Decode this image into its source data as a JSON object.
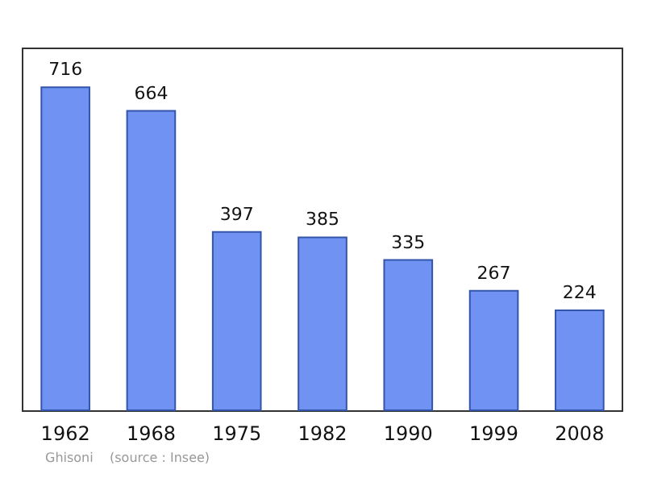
{
  "chart_data": {
    "type": "bar",
    "categories": [
      "1962",
      "1968",
      "1975",
      "1982",
      "1990",
      "1999",
      "2008"
    ],
    "values": [
      716,
      664,
      397,
      385,
      335,
      267,
      224
    ],
    "color": "#7092f2",
    "data_labels": true,
    "annotations": [
      "Ghisoni    (source : Insee)"
    ]
  }
}
